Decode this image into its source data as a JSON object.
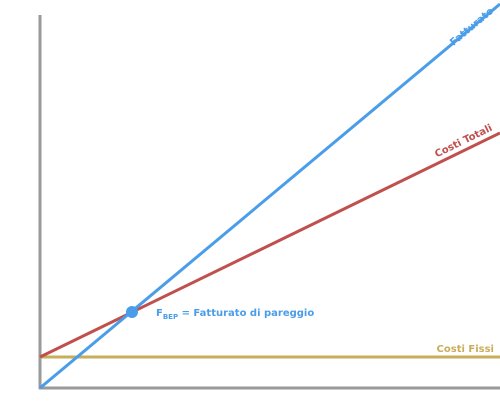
{
  "lines": [
    {
      "label": "Fatturato"
    },
    {
      "label": "Costi Totali"
    },
    {
      "label": "Costi Fissi"
    }
  ],
  "annotation": {
    "symbol": "F",
    "subscript": "BEP",
    "text": " = Fatturato di pareggio"
  }
}
